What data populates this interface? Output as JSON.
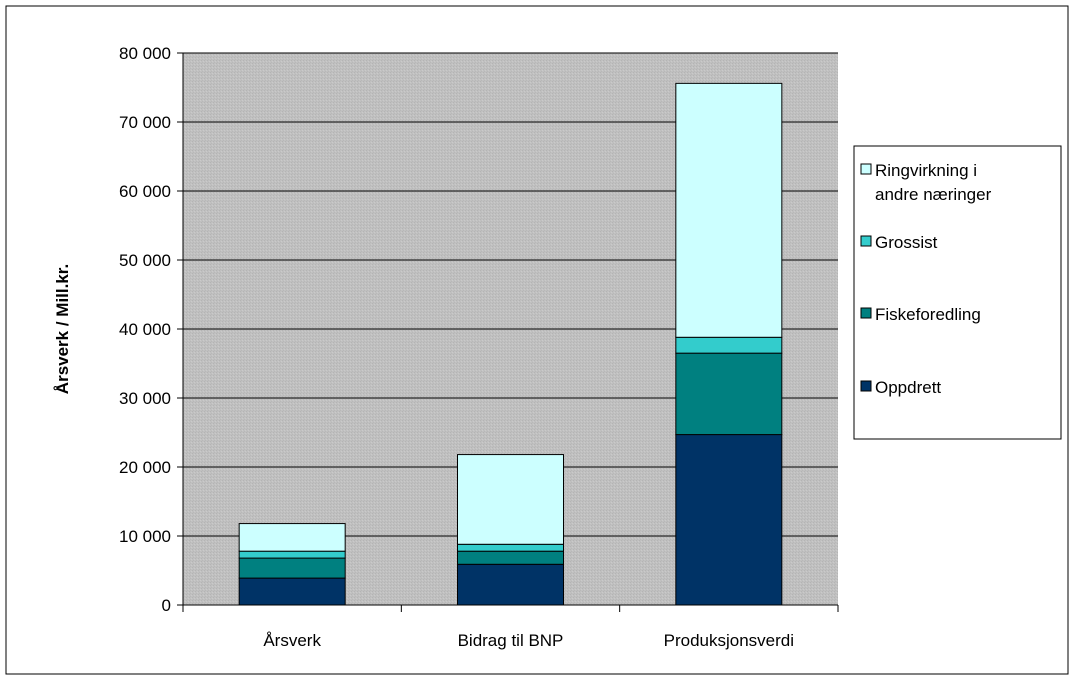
{
  "chart_data": {
    "type": "bar",
    "stacked": true,
    "title": "",
    "xlabel": "",
    "ylabel": "Årsverk / Mill.kr.",
    "ylim": [
      0,
      80000
    ],
    "ytick_step": 10000,
    "ytick_labels": [
      "0",
      "10 000",
      "20 000",
      "30 000",
      "40 000",
      "50 000",
      "60 000",
      "70 000",
      "80 000"
    ],
    "grid": true,
    "legend_position": "right",
    "categories": [
      "Årsverk",
      "Bidrag til BNP",
      "Produksjonsverdi"
    ],
    "series": [
      {
        "name": "Oppdrett",
        "values": [
          3900,
          5900,
          24700
        ],
        "color": "#003366"
      },
      {
        "name": "Fiskeforedling",
        "values": [
          2900,
          1900,
          11800
        ],
        "color": "#008080"
      },
      {
        "name": "Grossist",
        "values": [
          1000,
          1000,
          2300
        ],
        "color": "#33CCCC"
      },
      {
        "name": "Ringvirkning i andre næringer",
        "values": [
          4000,
          13000,
          36800
        ],
        "color": "#CCFFFF"
      }
    ],
    "legend_lines": {
      "Ringvirkning i andre næringer": [
        "Ringvirkning i",
        "andre næringer"
      ],
      "Grossist": [
        "Grossist"
      ],
      "Fiskeforedling": [
        "Fiskeforedling"
      ],
      "Oppdrett": [
        "Oppdrett"
      ]
    },
    "plot_background": "#C0C0C0"
  }
}
